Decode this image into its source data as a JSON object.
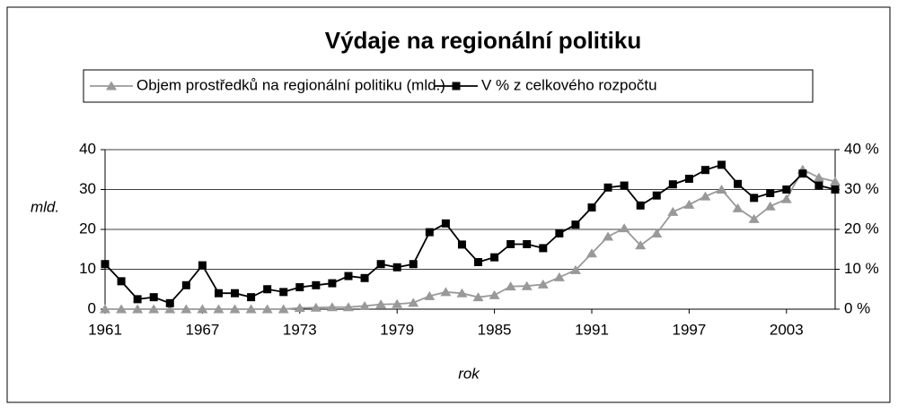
{
  "chart_data": {
    "type": "line",
    "title": "Výdaje na regionální politiku",
    "y_label": "mld.",
    "x_label": "rok",
    "x": [
      1961,
      1962,
      1963,
      1964,
      1965,
      1966,
      1967,
      1968,
      1969,
      1970,
      1971,
      1972,
      1973,
      1974,
      1975,
      1976,
      1977,
      1978,
      1979,
      1980,
      1981,
      1982,
      1983,
      1984,
      1985,
      1986,
      1987,
      1988,
      1989,
      1990,
      1991,
      1992,
      1993,
      1994,
      1995,
      1996,
      1997,
      1998,
      1999,
      2000,
      2001,
      2002,
      2003,
      2004,
      2005,
      2006
    ],
    "xlim": [
      1961,
      2006
    ],
    "xticks": [
      1961,
      1967,
      1973,
      1979,
      1985,
      1991,
      1997,
      2003
    ],
    "ylim": [
      0,
      40
    ],
    "yticks": [
      0,
      10,
      20,
      30,
      40
    ],
    "y2lim": [
      0,
      40
    ],
    "y2ticks": [
      {
        "value": 0,
        "label": "0 %"
      },
      {
        "value": 10,
        "label": "10 %"
      },
      {
        "value": 20,
        "label": "20 %"
      },
      {
        "value": 30,
        "label": "30 %"
      },
      {
        "value": 40,
        "label": "40 %"
      }
    ],
    "grid": true,
    "legend": "top",
    "series": [
      {
        "name": "Objem prostředků na regionální politiku (mld.)",
        "color": "#999999",
        "marker": "triangle",
        "values": [
          0,
          0,
          0,
          0,
          0,
          0,
          0,
          0,
          0,
          0,
          0,
          0,
          0.3,
          0.4,
          0.5,
          0.5,
          0.8,
          1.2,
          1.3,
          1.6,
          3.3,
          4.3,
          4,
          3,
          3.5,
          5.7,
          5.8,
          6.2,
          8,
          9.8,
          14,
          18.2,
          20.3,
          16,
          19,
          24.4,
          26.2,
          28.3,
          30,
          25.3,
          22.6,
          25.8,
          27.6,
          35,
          33,
          32
        ]
      },
      {
        "name": "V % z celkového rozpočtu",
        "color": "#000000",
        "marker": "square",
        "axis": "y2",
        "values": [
          11.3,
          7,
          2.5,
          3,
          1.5,
          6,
          11,
          4,
          4,
          3,
          5,
          4.3,
          5.5,
          6,
          6.5,
          8.3,
          7.8,
          11.3,
          10.5,
          11.3,
          19.3,
          21.5,
          16.2,
          11.8,
          13,
          16.3,
          16.3,
          15.3,
          19,
          21.2,
          25.5,
          30.5,
          31,
          26,
          28.5,
          31.3,
          32.7,
          34.9,
          36.2,
          31.4,
          27.9,
          29.1,
          30,
          34,
          31,
          30
        ]
      }
    ]
  }
}
